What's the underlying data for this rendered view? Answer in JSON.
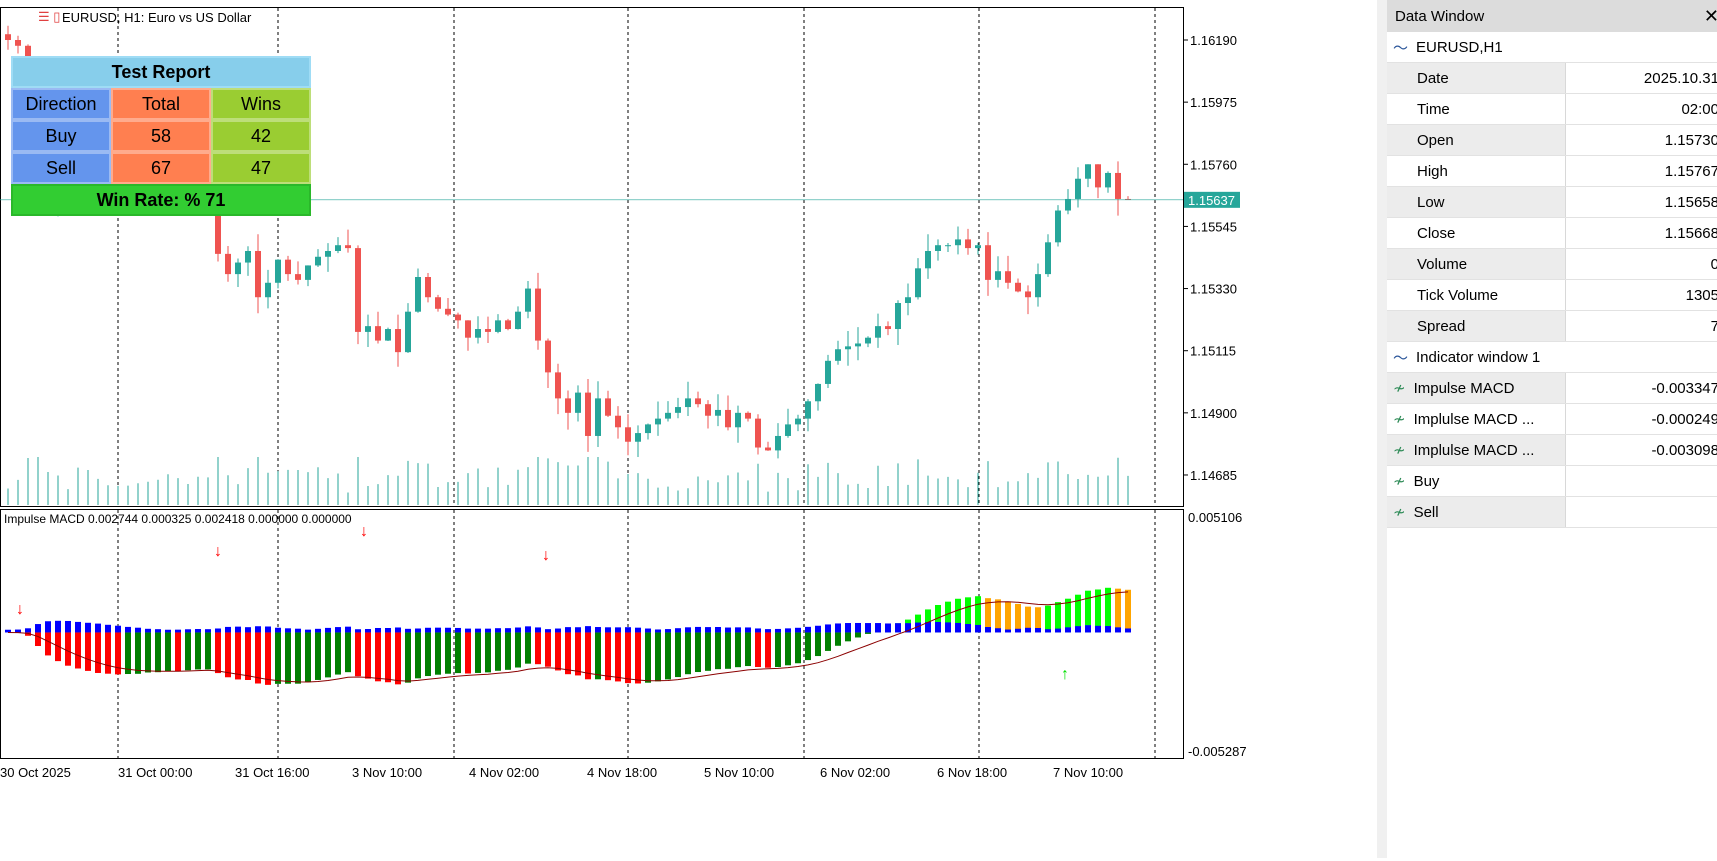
{
  "chart": {
    "symbol_title": "EURUSD, H1:  Euro vs US Dollar",
    "current_price": "1.15637",
    "price_axis": [
      "1.16190",
      "1.15975",
      "1.15760",
      "1.15545",
      "1.15330",
      "1.15115",
      "1.14900",
      "1.14685"
    ],
    "indicator_axis": [
      "0.005106",
      "-0.005287"
    ],
    "indicator_label": "Impulse MACD 0.002744 0.000325 0.002418 0.000000 0.000000",
    "time_axis": [
      "30 Oct 2025",
      "31 Oct 00:00",
      "31 Oct 16:00",
      "3 Nov 10:00",
      "4 Nov 02:00",
      "4 Nov 18:00",
      "5 Nov 10:00",
      "6 Nov 02:00",
      "6 Nov 18:00",
      "7 Nov 10:00"
    ],
    "colors": {
      "bull": "#26a69a",
      "bear": "#ef5350",
      "hist_red": "#ff0000",
      "hist_green": "#008000",
      "hist_lime": "#00ff00",
      "hist_orange": "#ffa500",
      "hist_blue": "#0000ff",
      "signal": "#8b0000"
    },
    "closes": [
      1.1619,
      1.1617,
      1.1605,
      1.1568,
      1.1562,
      1.157,
      1.1569,
      1.1572,
      1.157,
      1.1568,
      1.1571,
      1.1569,
      1.1572,
      1.157,
      1.1574,
      1.1569,
      1.1571,
      1.1565,
      1.157,
      1.1568,
      1.1564,
      1.1545,
      1.1538,
      1.1542,
      1.1546,
      1.153,
      1.1535,
      1.1543,
      1.1538,
      1.1536,
      1.1541,
      1.1544,
      1.1546,
      1.1548,
      1.1547,
      1.1518,
      1.152,
      1.1515,
      1.1519,
      1.1511,
      1.1525,
      1.1537,
      1.153,
      1.1526,
      1.1524,
      1.1522,
      1.1516,
      1.1519,
      1.1518,
      1.1522,
      1.1519,
      1.1525,
      1.1533,
      1.1515,
      1.1504,
      1.1495,
      1.149,
      1.1497,
      1.1482,
      1.1495,
      1.1489,
      1.1485,
      1.148,
      1.1483,
      1.1486,
      1.1488,
      1.149,
      1.1492,
      1.1495,
      1.1493,
      1.1489,
      1.1491,
      1.1485,
      1.149,
      1.1488,
      1.1478,
      1.1477,
      1.1482,
      1.1486,
      1.1488,
      1.1494,
      1.15,
      1.1508,
      1.1512,
      1.1513,
      1.1514,
      1.1516,
      1.152,
      1.1519,
      1.1528,
      1.153,
      1.154,
      1.1546,
      1.1548,
      1.1548,
      1.155,
      1.1547,
      1.1548,
      1.1536,
      1.1539,
      1.1535,
      1.1532,
      1.153,
      1.1538,
      1.1549,
      1.156,
      1.1564,
      1.1571,
      1.1576,
      1.1568,
      1.1573,
      1.1564,
      1.15637
    ]
  },
  "report": {
    "title": "Test Report",
    "headers": [
      "Direction",
      "Total",
      "Wins"
    ],
    "rows": [
      [
        "Buy",
        "58",
        "42"
      ],
      [
        "Sell",
        "67",
        "47"
      ]
    ],
    "win_rate": "Win Rate: %  71"
  },
  "data_window": {
    "title": "Data Window",
    "symbol": "EURUSD,H1",
    "rows": [
      [
        "Date",
        "2025.10.31"
      ],
      [
        "Time",
        "02:00"
      ],
      [
        "Open",
        "1.15730"
      ],
      [
        "High",
        "1.15767"
      ],
      [
        "Low",
        "1.15658"
      ],
      [
        "Close",
        "1.15668"
      ],
      [
        "Volume",
        "0"
      ],
      [
        "Tick Volume",
        "1305"
      ],
      [
        "Spread",
        "7"
      ]
    ],
    "indicator_section": "Indicator window 1",
    "indicator_rows": [
      [
        "Impulse MACD",
        "-0.003347"
      ],
      [
        "Implulse MACD ...",
        "-0.000249"
      ],
      [
        "Implulse MACD ...",
        "-0.003098"
      ],
      [
        "Buy",
        ""
      ],
      [
        "Sell",
        ""
      ]
    ]
  }
}
